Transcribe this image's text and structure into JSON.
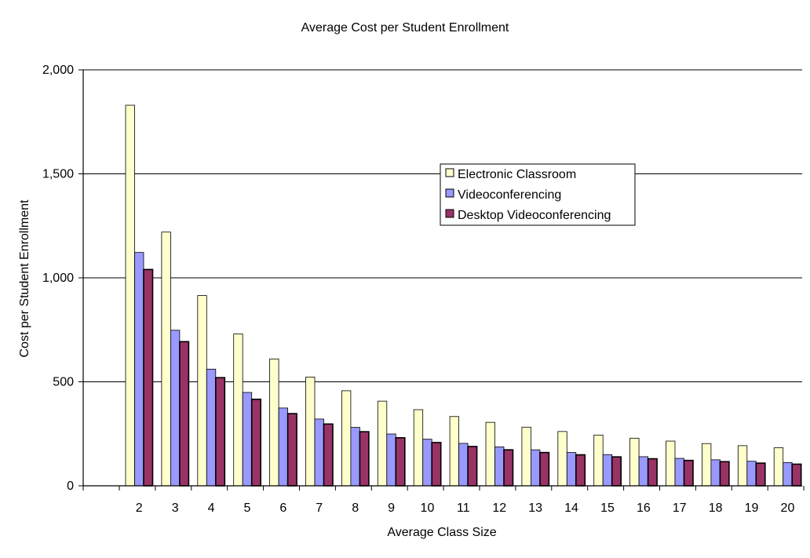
{
  "chart_data": {
    "type": "bar",
    "title": "Average Cost per Student Enrollment",
    "xlabel": "Average Class Size",
    "ylabel": "Cost per Student Enrollment",
    "categories": [
      "2",
      "3",
      "4",
      "5",
      "6",
      "7",
      "8",
      "9",
      "10",
      "11",
      "12",
      "13",
      "14",
      "15",
      "16",
      "17",
      "18",
      "19",
      "20"
    ],
    "ylim": [
      0,
      2000
    ],
    "yticks": [
      0,
      500,
      1000,
      1500,
      2000
    ],
    "ytick_labels": [
      "0",
      "500",
      "1,000",
      "1,500",
      "2,000"
    ],
    "grid": true,
    "legend_position": "center-right",
    "series": [
      {
        "name": "Electronic Classroom",
        "color": "#FFFFCC",
        "values": [
          1830,
          1220,
          915,
          730,
          610,
          523,
          457,
          407,
          366,
          333,
          305,
          282,
          261,
          244,
          229,
          215,
          203,
          193,
          183
        ]
      },
      {
        "name": "Videoconferencing",
        "color": "#9999FF",
        "values": [
          1122,
          748,
          561,
          449,
          374,
          321,
          281,
          249,
          224,
          204,
          187,
          173,
          160,
          150,
          140,
          132,
          125,
          118,
          112
        ]
      },
      {
        "name": "Desktop Videoconferencing",
        "color": "#993366",
        "values": [
          1040,
          693,
          520,
          416,
          347,
          297,
          260,
          231,
          208,
          189,
          173,
          160,
          149,
          139,
          130,
          122,
          116,
          109,
          104
        ]
      }
    ]
  }
}
